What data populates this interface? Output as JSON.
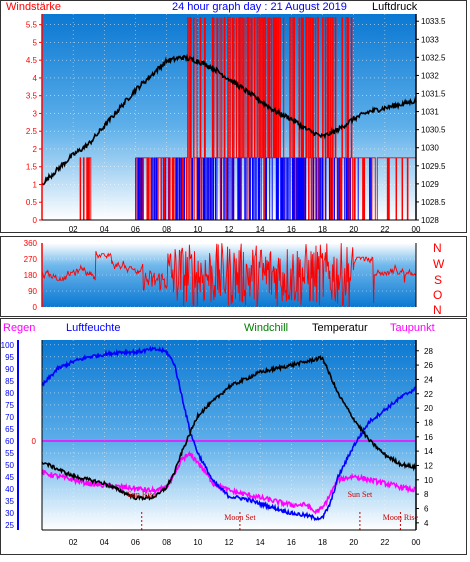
{
  "header": {
    "left_label": "Windstärke",
    "title": "24 hour graph day : 21 August 2019",
    "right_label": "Luftdruck"
  },
  "direction_letters": [
    "N",
    "W",
    "S",
    "O",
    "N"
  ],
  "lower_header": {
    "regen": "Regen",
    "luftfeuchte": "Luftfeuchte",
    "windchill": "Windchill",
    "temperatur": "Temperatur",
    "taupunkt": "Taupunkt"
  },
  "colors": {
    "panel_bg_top": "#0a78d2",
    "panel_bg_bottom": "#ffffff",
    "wind": "#ff0000",
    "gust": "#0000ff",
    "pressure": "#000000",
    "humidity": "#0000ff",
    "temperature": "#000000",
    "dewpoint": "#ff00ff",
    "label_red": "#ff0000",
    "label_blue": "#0000ff",
    "label_green": "#008000",
    "label_magenta": "#ff00ff",
    "astro": "#cc0000"
  },
  "chart_data": [
    {
      "type": "line",
      "id": "wind_pressure",
      "ylabel_left": "Windstärke",
      "ylabel_right": "Luftdruck",
      "x_ticks": [
        "02",
        "04",
        "06",
        "08",
        "10",
        "12",
        "14",
        "16",
        "18",
        "20",
        "22",
        "00"
      ],
      "left_ticks": [
        "0",
        "0.5",
        "1",
        "1.5",
        "2",
        "2.5",
        "3",
        "3.5",
        "4",
        "4.5",
        "5",
        "5.5"
      ],
      "right_ticks": [
        "1028",
        "1028.5",
        "1029",
        "1029.5",
        "1030",
        "1030.5",
        "1031",
        "1031.5",
        "1032",
        "1032.5",
        "1033",
        "1033.5"
      ],
      "left_range": [
        0,
        5.8
      ],
      "right_range": [
        1028,
        1033.7
      ],
      "pressure": {
        "x": [
          0,
          1,
          2,
          3,
          4,
          5,
          6,
          7,
          8,
          9,
          10,
          11,
          12,
          13,
          14,
          15,
          16,
          17,
          18,
          19,
          20,
          21,
          22,
          23,
          24
        ],
        "values": [
          1029.0,
          1029.4,
          1029.8,
          1030.1,
          1030.6,
          1031.1,
          1031.6,
          1032.0,
          1032.4,
          1032.5,
          1032.4,
          1032.2,
          1031.9,
          1031.6,
          1031.3,
          1031.0,
          1030.8,
          1030.5,
          1030.3,
          1030.5,
          1030.8,
          1031.0,
          1031.1,
          1031.2,
          1031.3
        ]
      },
      "wind_levels": [
        0,
        1.75,
        5.7
      ],
      "gust_level": 1.75
    },
    {
      "type": "line",
      "id": "wind_direction",
      "left_ticks": [
        "0",
        "90",
        "180",
        "270",
        "360"
      ],
      "range": [
        0,
        360
      ],
      "x_ticks": [
        "02",
        "04",
        "06",
        "08",
        "10",
        "12",
        "14",
        "16",
        "18",
        "20",
        "22",
        "00"
      ]
    },
    {
      "type": "line",
      "id": "humidity_temperature",
      "left_ticks": [
        "25",
        "30",
        "35",
        "40",
        "45",
        "50",
        "55",
        "60",
        "65",
        "70",
        "75",
        "80",
        "85",
        "90",
        "95",
        "100"
      ],
      "right_ticks": [
        "4",
        "6",
        "8",
        "10",
        "12",
        "14",
        "16",
        "18",
        "20",
        "22",
        "24",
        "26",
        "28"
      ],
      "left_range": [
        23,
        102
      ],
      "right_range": [
        3,
        29.5
      ],
      "rain_zero": "0",
      "x_ticks": [
        "02",
        "04",
        "06",
        "08",
        "10",
        "12",
        "14",
        "16",
        "18",
        "20",
        "22",
        "00"
      ],
      "humidity": {
        "x": [
          0,
          1,
          2,
          3,
          4,
          5,
          6,
          7,
          7.5,
          8,
          8.5,
          9,
          9.5,
          10,
          11,
          12,
          13,
          14,
          15,
          16,
          17,
          17.5,
          18,
          18.5,
          19,
          20,
          21,
          22,
          23,
          24
        ],
        "values": [
          83,
          90,
          93,
          95,
          96,
          97,
          97,
          98,
          98,
          97,
          92,
          78,
          64,
          55,
          43,
          37,
          36,
          34,
          32,
          30,
          29,
          28,
          28,
          34,
          45,
          58,
          68,
          73,
          78,
          82
        ]
      },
      "temperature": {
        "x": [
          0,
          1,
          2,
          3,
          4,
          5,
          6,
          7,
          7.5,
          8,
          8.5,
          9,
          9.5,
          10,
          11,
          12,
          13,
          14,
          15,
          16,
          17,
          17.5,
          18,
          18.5,
          19,
          20,
          21,
          22,
          23,
          24
        ],
        "values": [
          12.5,
          11.5,
          10.5,
          10,
          9.5,
          8.5,
          7.5,
          7.5,
          8,
          9,
          11,
          14,
          16.5,
          19,
          21,
          23,
          24,
          25,
          25.5,
          26,
          26.5,
          26.8,
          27,
          24.5,
          22,
          18.5,
          15.5,
          13.5,
          12.2,
          11.7
        ]
      },
      "dewpoint": {
        "x": [
          0,
          1,
          2,
          3,
          4,
          5,
          6,
          7,
          7.5,
          8,
          8.5,
          9,
          9.5,
          10,
          11,
          12,
          13,
          14,
          15,
          16,
          17,
          17.5,
          18,
          18.5,
          19,
          20,
          21,
          22,
          23,
          24
        ],
        "values": [
          11,
          10.5,
          10,
          9.5,
          9.2,
          9,
          8.8,
          8.5,
          8.5,
          9,
          10.5,
          13,
          13.5,
          12.5,
          9.5,
          8.5,
          8,
          7.5,
          7,
          6.5,
          6.5,
          5.5,
          6,
          8,
          10,
          10.5,
          10,
          9.5,
          9,
          8.5
        ]
      },
      "astro": [
        {
          "label": "Sun Rise",
          "hour": 6.4
        },
        {
          "label": "Moon Set",
          "hour": 12.7
        },
        {
          "label": "Sun Set",
          "hour": 20.4
        },
        {
          "label": "Moon Rise",
          "hour": 23.0
        }
      ]
    }
  ]
}
